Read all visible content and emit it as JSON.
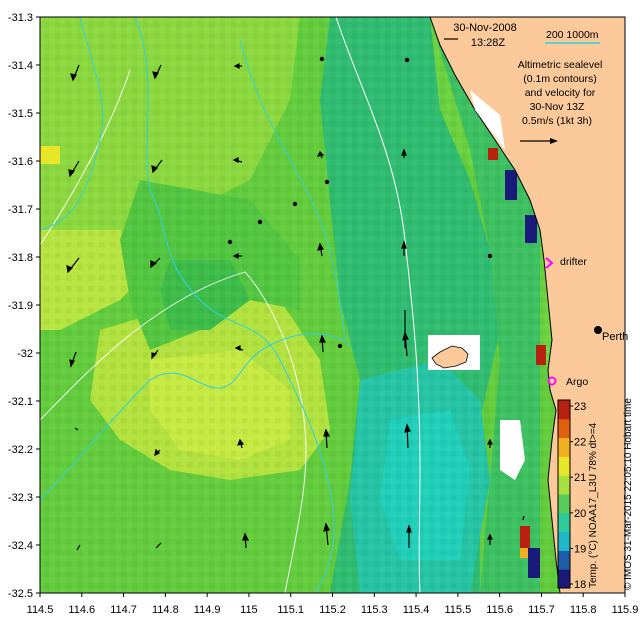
{
  "map": {
    "x_axis": {
      "min": 114.5,
      "max": 115.9,
      "ticks": [
        "114.5",
        "114.6",
        "114.7",
        "114.8",
        "114.9",
        "115",
        "115.1",
        "115.2",
        "115.3",
        "115.4",
        "115.5",
        "115.6",
        "115.7",
        "115.8",
        "115.9"
      ]
    },
    "y_axis": {
      "min": -32.5,
      "max": -31.3,
      "ticks": [
        "-31.3",
        "-31.4",
        "-31.5",
        "-31.6",
        "-31.7",
        "-31.8",
        "-31.9",
        "-32",
        "-32.1",
        "-32.2",
        "-32.3",
        "-32.4",
        "-32.5"
      ]
    }
  },
  "header": {
    "date": "30-Nov-2008",
    "time": "13:28Z"
  },
  "depth_legend": {
    "label": "200  1000m",
    "color": "#30d0e0"
  },
  "info": {
    "line1": "Altimetric sealevel",
    "line2": "(0.1m contours)",
    "line3": "and velocity for",
    "line4": "30-Nov 13Z",
    "line5": "0.5m/s (1kt 3h)"
  },
  "places": {
    "perth": "Perth",
    "drifter": "drifter",
    "argo": "Argo"
  },
  "colorbar": {
    "ticks": [
      "23",
      "22",
      "21",
      "20",
      "19",
      "18"
    ],
    "label": "Temp. (°C) NOAA17_L3U 78% dt>=4",
    "colors": [
      "#1a1a7a",
      "#1c5ca8",
      "#1fb8c8",
      "#2ecc9a",
      "#58cc5a",
      "#a8e040",
      "#e8e628",
      "#f0b020",
      "#e06010",
      "#b82010"
    ]
  },
  "credit": "© IMOS 31-Mar-2015 22:05:10 Hobart time",
  "colors": {
    "land": "#fbc99a",
    "coast": "#000000",
    "sst_cool": "#1fcfb0",
    "sst_warm": "#c8f040"
  }
}
